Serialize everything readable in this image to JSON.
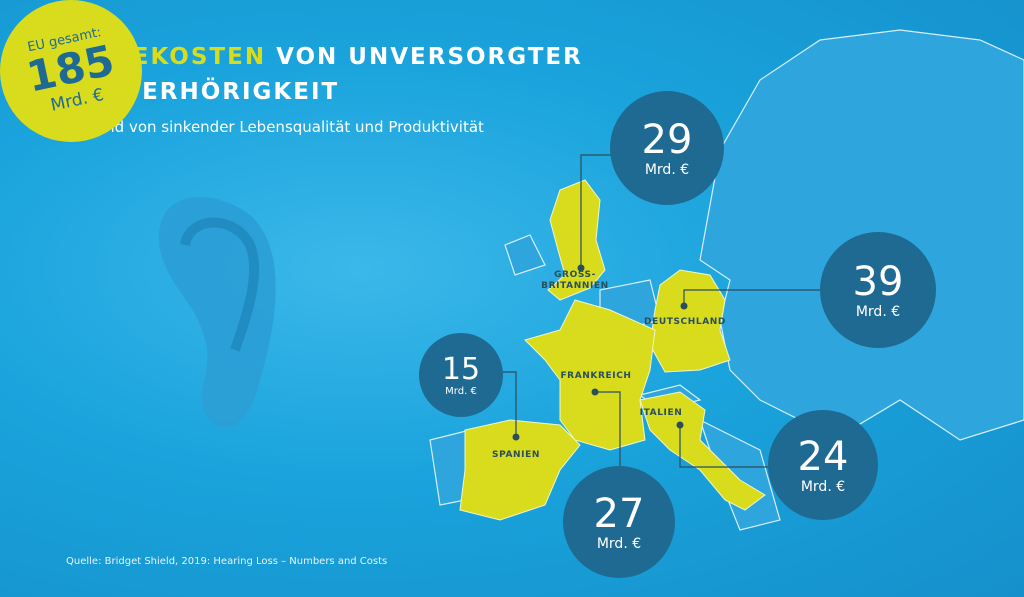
{
  "title": {
    "highlight": "FOLGEKOSTEN",
    "rest": " VON UNVERSORGTER",
    "line2": "SCHWERHÖRIGKEIT"
  },
  "subtitle": "aufgrund von sinkender Lebensqualität und Produktivität",
  "source": "Quelle: Bridget Shield, 2019: Hearing Loss – Numbers and Costs",
  "eu_total": {
    "label": "EU gesamt:",
    "value": "185",
    "unit": "Mrd. €"
  },
  "countries": [
    {
      "name": "GROSS-\nBRITANNIEN",
      "value": "29",
      "unit": "Mrd. €"
    },
    {
      "name": "DEUTSCHLAND",
      "value": "39",
      "unit": "Mrd. €"
    },
    {
      "name": "SPANIEN",
      "value": "15",
      "unit": "Mrd. €"
    },
    {
      "name": "FRANKREICH",
      "value": "27",
      "unit": "Mrd. €"
    },
    {
      "name": "ITALIEN",
      "value": "24",
      "unit": "Mrd. €"
    }
  ],
  "colors": {
    "background": "#1aa3dc",
    "highlight": "#d8dc1c",
    "bubble": "#1f6a92",
    "land": "#2fa8de"
  }
}
